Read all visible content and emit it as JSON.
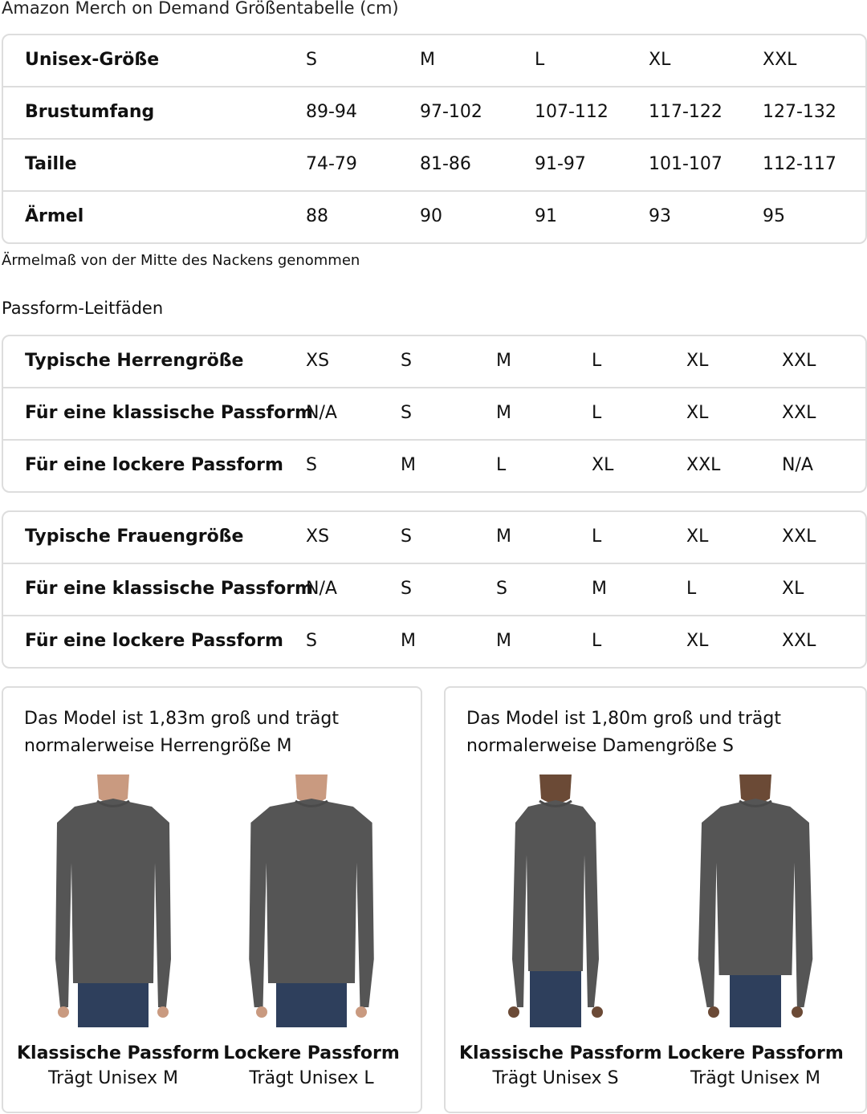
{
  "title": "Amazon Merch on Demand Größentabelle (cm)",
  "size_table": {
    "rows": [
      {
        "label": "Unisex-Größe",
        "values": [
          "S",
          "M",
          "L",
          "XL",
          "XXL"
        ]
      },
      {
        "label": "Brustumfang",
        "values": [
          "89-94",
          "97-102",
          "107-112",
          "117-122",
          "127-132"
        ]
      },
      {
        "label": "Taille",
        "values": [
          "74-79",
          "81-86",
          "91-97",
          "101-107",
          "112-117"
        ]
      },
      {
        "label": "Ärmel",
        "values": [
          "88",
          "90",
          "91",
          "93",
          "95"
        ]
      }
    ]
  },
  "note": "Ärmelmaß von der Mitte des Nackens genommen",
  "fit_heading": "Passform-Leitfäden",
  "men_table": {
    "rows": [
      {
        "label": "Typische Herrengröße",
        "values": [
          "XS",
          "S",
          "M",
          "L",
          "XL",
          "XXL"
        ]
      },
      {
        "label": "Für eine klassische Passform",
        "values": [
          "N/A",
          "S",
          "M",
          "L",
          "XL",
          "XXL"
        ]
      },
      {
        "label": "Für eine lockere Passform",
        "values": [
          "S",
          "M",
          "L",
          "XL",
          "XXL",
          "N/A"
        ]
      }
    ]
  },
  "women_table": {
    "rows": [
      {
        "label": "Typische Frauengröße",
        "values": [
          "XS",
          "S",
          "M",
          "L",
          "XL",
          "XXL"
        ]
      },
      {
        "label": "Für eine klassische Passform",
        "values": [
          "N/A",
          "S",
          "S",
          "M",
          "L",
          "XL"
        ]
      },
      {
        "label": "Für eine lockere Passform",
        "values": [
          "S",
          "M",
          "M",
          "L",
          "XL",
          "XXL"
        ]
      }
    ]
  },
  "cards": [
    {
      "description": "Das Model ist 1,83m groß und trägt normalerweise Herrengröße M",
      "figures": [
        {
          "title": "Klassische Passform",
          "subtitle": "Trägt Unisex M"
        },
        {
          "title": "Lockere Passform",
          "subtitle": "Trägt Unisex L"
        }
      ]
    },
    {
      "description": "Das Model ist 1,80m groß und trägt normalerweise Damengröße S",
      "figures": [
        {
          "title": "Klassische Passform",
          "subtitle": "Trägt Unisex S"
        },
        {
          "title": "Lockere Passform",
          "subtitle": "Trägt Unisex M"
        }
      ]
    }
  ],
  "colors": {
    "border": "#dddddd",
    "shirt": "#555555",
    "jeans": "#2e3f5c"
  }
}
